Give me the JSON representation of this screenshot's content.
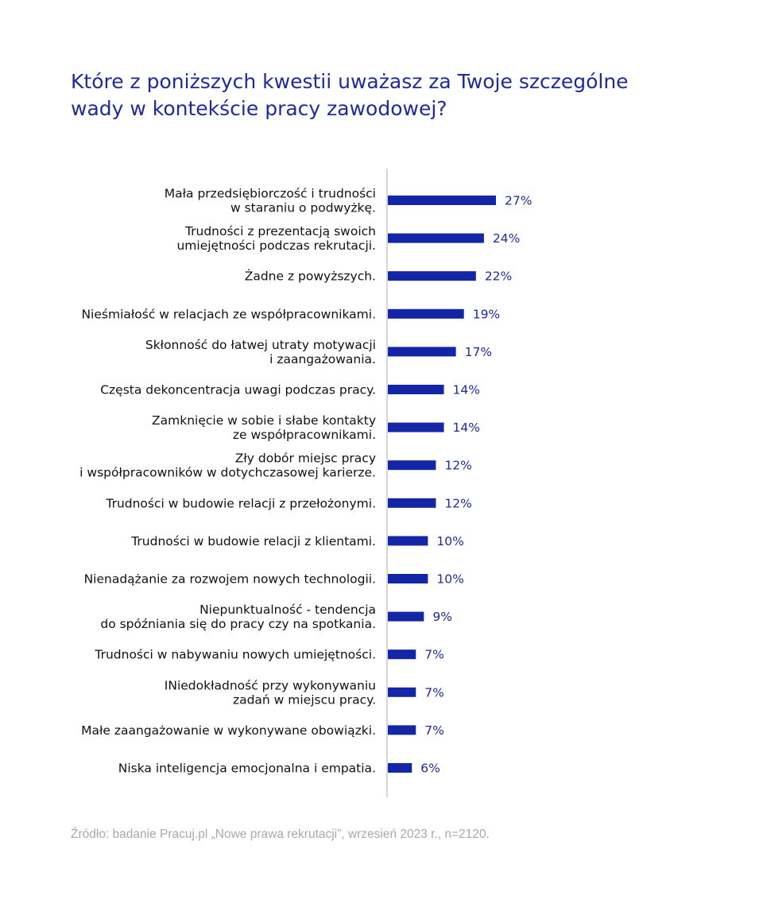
{
  "title_lines": [
    "Które z poniższych kwestii uważasz za Twoje szczególne",
    "wady w kontekście pracy zawodowej?"
  ],
  "source": "Źródło: badanie Pracuj.pl „Nowe prawa rekrutacji”, wrzesień 2023 r., n=2120.",
  "colors": {
    "bar": "#1426a8",
    "title": "#1e2a9e",
    "value_label": "#1e2a9e",
    "axis": "#c8c8c8",
    "source": "#a9a9a9"
  },
  "chart_data": {
    "type": "bar",
    "orientation": "horizontal",
    "title": "Które z poniższych kwestii uważasz za Twoje szczególne wady w kontekście pracy zawodowej?",
    "unit": "%",
    "categories": [
      [
        "Mała przedsiębiorczość i trudności",
        "w staraniu o podwyżkę."
      ],
      [
        "Trudności z prezentacją swoich",
        "umiejętności podczas rekrutacji."
      ],
      [
        "Żadne z powyższych."
      ],
      [
        "Nieśmiałość w relacjach ze współpracownikami."
      ],
      [
        "Skłonność do łatwej utraty motywacji",
        "i zaangażowania."
      ],
      [
        "Częsta dekoncentracja uwagi podczas pracy."
      ],
      [
        "Zamknięcie w sobie i słabe kontakty",
        "ze współpracownikami."
      ],
      [
        "Zły dobór miejsc pracy",
        "i współpracowników w dotychczasowej karierze."
      ],
      [
        "Trudności w budowie relacji z przełożonymi."
      ],
      [
        "Trudności w budowie relacji z klientami."
      ],
      [
        "Nienadążanie za rozwojem nowych technologii."
      ],
      [
        "Niepunktualność - tendencja",
        "do spóźniania się do pracy czy na spotkania."
      ],
      [
        "Trudności w nabywaniu nowych umiejętności."
      ],
      [
        "INiedokładność przy wykonywaniu",
        "zadań w miejscu pracy."
      ],
      [
        "Małe zaangażowanie w wykonywane obowiązki."
      ],
      [
        "Niska inteligencja emocjonalna i empatia."
      ]
    ],
    "values": [
      27,
      24,
      22,
      19,
      17,
      14,
      14,
      12,
      12,
      10,
      10,
      9,
      7,
      7,
      7,
      6
    ],
    "value_labels": [
      "27%",
      "24%",
      "22%",
      "19%",
      "17%",
      "14%",
      "14%",
      "12%",
      "12%",
      "10%",
      "10%",
      "9%",
      "7%",
      "7%",
      "7%",
      "6%"
    ],
    "xlim": [
      0,
      27
    ],
    "grid": false,
    "legend": "none"
  }
}
